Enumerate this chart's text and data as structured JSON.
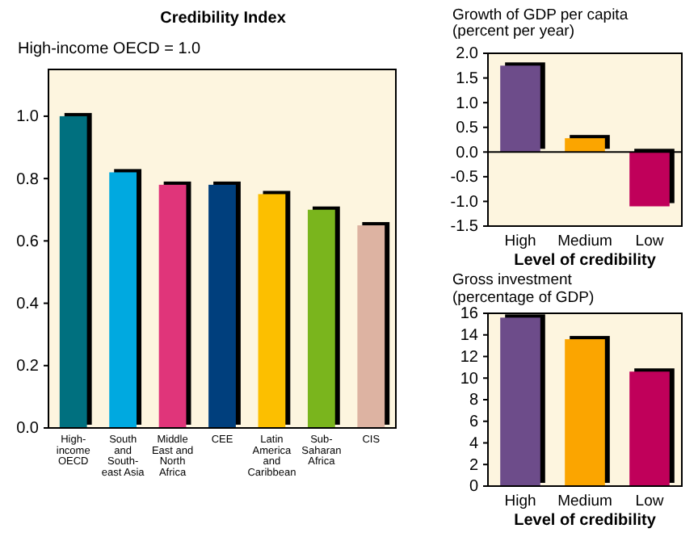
{
  "chart_data": [
    {
      "type": "bar",
      "title": "Credibility Index",
      "subtitle": "High-income OECD = 1.0",
      "categories": [
        "High-income OECD",
        "South and South-east Asia",
        "Middle East and North Africa",
        "CEE",
        "Latin America and Caribbean",
        "Sub-Saharan Africa",
        "CIS"
      ],
      "values": [
        1.0,
        0.82,
        0.78,
        0.78,
        0.75,
        0.7,
        0.65
      ],
      "colors": [
        "#00707f",
        "#00a9e0",
        "#e0357a",
        "#003f7d",
        "#fcbf00",
        "#7ab51d",
        "#ddb3a2"
      ],
      "ylim": [
        0,
        1.15
      ],
      "yticks": [
        {
          "value": 0,
          "label": "0.0"
        },
        {
          "value": 0.2,
          "label": "0.2"
        },
        {
          "value": 0.4,
          "label": "0.4"
        },
        {
          "value": 0.6,
          "label": "0.6"
        },
        {
          "value": 0.8,
          "label": "0.8"
        },
        {
          "value": 1,
          "label": "1.0"
        }
      ]
    },
    {
      "type": "bar",
      "title": "Growth of GDP per capita",
      "subtitle": "(percent per year)",
      "xlabel": "Level of credibility",
      "categories": [
        "High",
        "Medium",
        "Low"
      ],
      "values": [
        1.75,
        0.28,
        -1.1
      ],
      "colors": [
        "#6d4c8a",
        "#fba500",
        "#c0005a"
      ],
      "ylim": [
        -1.5,
        2
      ],
      "yticks": [
        {
          "value": -1.5,
          "label": "-1.5"
        },
        {
          "value": -1,
          "label": "-1.0"
        },
        {
          "value": -0.5,
          "label": "-0.5"
        },
        {
          "value": 0,
          "label": "0.0"
        },
        {
          "value": 0.5,
          "label": "0.5"
        },
        {
          "value": 1,
          "label": "1.0"
        },
        {
          "value": 1.5,
          "label": "1.5"
        },
        {
          "value": 2,
          "label": "2.0"
        }
      ]
    },
    {
      "type": "bar",
      "title": "Gross investment",
      "subtitle": "(percentage of GDP)",
      "xlabel": "Level of credibility",
      "categories": [
        "High",
        "Medium",
        "Low"
      ],
      "values": [
        15.6,
        13.6,
        10.6
      ],
      "colors": [
        "#6d4c8a",
        "#fba500",
        "#c0005a"
      ],
      "ylim": [
        0,
        16
      ],
      "yticks": [
        0,
        2,
        4,
        6,
        8,
        10,
        12,
        14,
        16
      ]
    }
  ]
}
